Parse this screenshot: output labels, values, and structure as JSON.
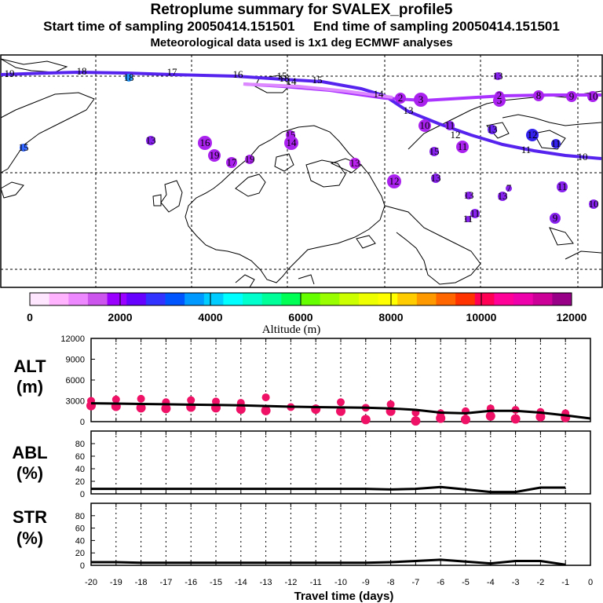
{
  "header": {
    "title": "Retroplume summary for SVALEX_profile5",
    "sampling": "Start time of sampling 20050414.151501     End time of sampling 20050414.151501",
    "met": "Meteorological data used is 1x1 deg ECMWF analyses"
  },
  "colorbar": {
    "label": "Altitude (m)",
    "ticks": [
      "0",
      "2000",
      "4000",
      "6000",
      "8000",
      "10000",
      "12000"
    ],
    "colors": [
      "#ffe6ff",
      "#ffb3ff",
      "#ee88ff",
      "#cc55ee",
      "#9900ff",
      "#6600ff",
      "#3333ff",
      "#0055ff",
      "#0099ff",
      "#00ccff",
      "#00ffff",
      "#00ffcc",
      "#00ff99",
      "#00ff55",
      "#66ff00",
      "#99ff00",
      "#ccff00",
      "#eeff00",
      "#ffff00",
      "#ffcc00",
      "#ff9900",
      "#ff6600",
      "#ff3300",
      "#ff0055",
      "#ff0099",
      "#ee00aa",
      "#cc0099",
      "#990088"
    ]
  },
  "map": {
    "track_main_labels": [
      "19",
      "18",
      "17",
      "16",
      "15",
      "14",
      "13",
      "12",
      "11",
      "10"
    ],
    "track_secondary_labels": [
      "18",
      "15",
      "14"
    ],
    "cluster_labels": [
      "19",
      "18",
      "17",
      "16",
      "15",
      "14",
      "13",
      "12",
      "11",
      "10",
      "9",
      "8",
      "7",
      "6",
      "5",
      "4",
      "3",
      "2"
    ]
  },
  "chart_data": [
    {
      "type": "line",
      "title": "ALT",
      "ylabel": "ALT (m)",
      "xlabel": "Travel time (days)",
      "ylim": [
        0,
        12000
      ],
      "yticks": [
        "12000",
        "9000",
        "6000",
        "3000",
        "0"
      ],
      "ytick_values": [
        12000,
        9000,
        6000,
        3000,
        0
      ],
      "x": [
        -20,
        -19,
        -18,
        -17,
        -16,
        -15,
        -14,
        -13,
        -12,
        -11,
        -10,
        -9,
        -8,
        -7,
        -6,
        -5,
        -4,
        -3,
        -2,
        -1,
        0
      ],
      "values": [
        2650,
        2600,
        2550,
        2500,
        2450,
        2400,
        2350,
        2250,
        2150,
        2100,
        2050,
        2000,
        1900,
        1700,
        1300,
        1200,
        1550,
        1550,
        1300,
        900,
        450
      ],
      "points": [
        {
          "x": -20,
          "y": 3000
        },
        {
          "x": -20,
          "y": 2300
        },
        {
          "x": -19,
          "y": 3200
        },
        {
          "x": -19,
          "y": 2200
        },
        {
          "x": -18,
          "y": 3300
        },
        {
          "x": -18,
          "y": 2000
        },
        {
          "x": -17,
          "y": 2800
        },
        {
          "x": -17,
          "y": 1900
        },
        {
          "x": -16,
          "y": 3100
        },
        {
          "x": -16,
          "y": 2100
        },
        {
          "x": -15,
          "y": 2900
        },
        {
          "x": -15,
          "y": 2000
        },
        {
          "x": -14,
          "y": 2700
        },
        {
          "x": -14,
          "y": 1800
        },
        {
          "x": -13,
          "y": 3500
        },
        {
          "x": -13,
          "y": 1600
        },
        {
          "x": -12,
          "y": 2100
        },
        {
          "x": -11,
          "y": 1800
        },
        {
          "x": -10,
          "y": 2800
        },
        {
          "x": -10,
          "y": 1500
        },
        {
          "x": -9,
          "y": 2000
        },
        {
          "x": -9,
          "y": 300
        },
        {
          "x": -8,
          "y": 2500
        },
        {
          "x": -8,
          "y": 1500
        },
        {
          "x": -7,
          "y": 1300
        },
        {
          "x": -7,
          "y": 100
        },
        {
          "x": -6,
          "y": 1200
        },
        {
          "x": -6,
          "y": 500
        },
        {
          "x": -5,
          "y": 1500
        },
        {
          "x": -5,
          "y": 300
        },
        {
          "x": -4,
          "y": 1900
        },
        {
          "x": -4,
          "y": 800
        },
        {
          "x": -3,
          "y": 1700
        },
        {
          "x": -3,
          "y": 400
        },
        {
          "x": -2,
          "y": 1400
        },
        {
          "x": -2,
          "y": 700
        },
        {
          "x": -1,
          "y": 1200
        },
        {
          "x": -1,
          "y": 600
        }
      ]
    },
    {
      "type": "line",
      "title": "ABL",
      "ylabel": "ABL (%)",
      "ylim": [
        0,
        100
      ],
      "yticks": [
        "80",
        "60",
        "40",
        "20",
        "0"
      ],
      "ytick_values": [
        80,
        60,
        40,
        20,
        0
      ],
      "x": [
        -20,
        -19,
        -18,
        -17,
        -16,
        -15,
        -14,
        -13,
        -12,
        -11,
        -10,
        -9,
        -8,
        -7,
        -6,
        -5,
        -4,
        -3,
        -2,
        -1
      ],
      "values": [
        8,
        8,
        8,
        8,
        8,
        8,
        8,
        8,
        8,
        8,
        8,
        8,
        7,
        8,
        11,
        7,
        3,
        3,
        10,
        10
      ]
    },
    {
      "type": "line",
      "title": "STR",
      "ylabel": "STR (%)",
      "ylim": [
        0,
        100
      ],
      "yticks": [
        "80",
        "60",
        "40",
        "20",
        "0"
      ],
      "ytick_values": [
        80,
        60,
        40,
        20,
        0
      ],
      "x": [
        -20,
        -19,
        -18,
        -17,
        -16,
        -15,
        -14,
        -13,
        -12,
        -11,
        -10,
        -9,
        -8,
        -7,
        -6,
        -5,
        -4,
        -3,
        -2,
        -1
      ],
      "values": [
        5,
        5,
        4,
        4,
        4,
        4,
        4,
        4,
        4,
        4,
        4,
        4,
        5,
        7,
        9,
        6,
        3,
        7,
        7,
        1
      ]
    }
  ],
  "x_axis": {
    "label": "Travel time (days)",
    "ticks": [
      "-20",
      "-19",
      "-18",
      "-17",
      "-16",
      "-15",
      "-14",
      "-13",
      "-12",
      "-11",
      "-10",
      "-9",
      "-8",
      "-7",
      "-6",
      "-5",
      "-4",
      "-3",
      "-2",
      "-1",
      "0"
    ]
  }
}
